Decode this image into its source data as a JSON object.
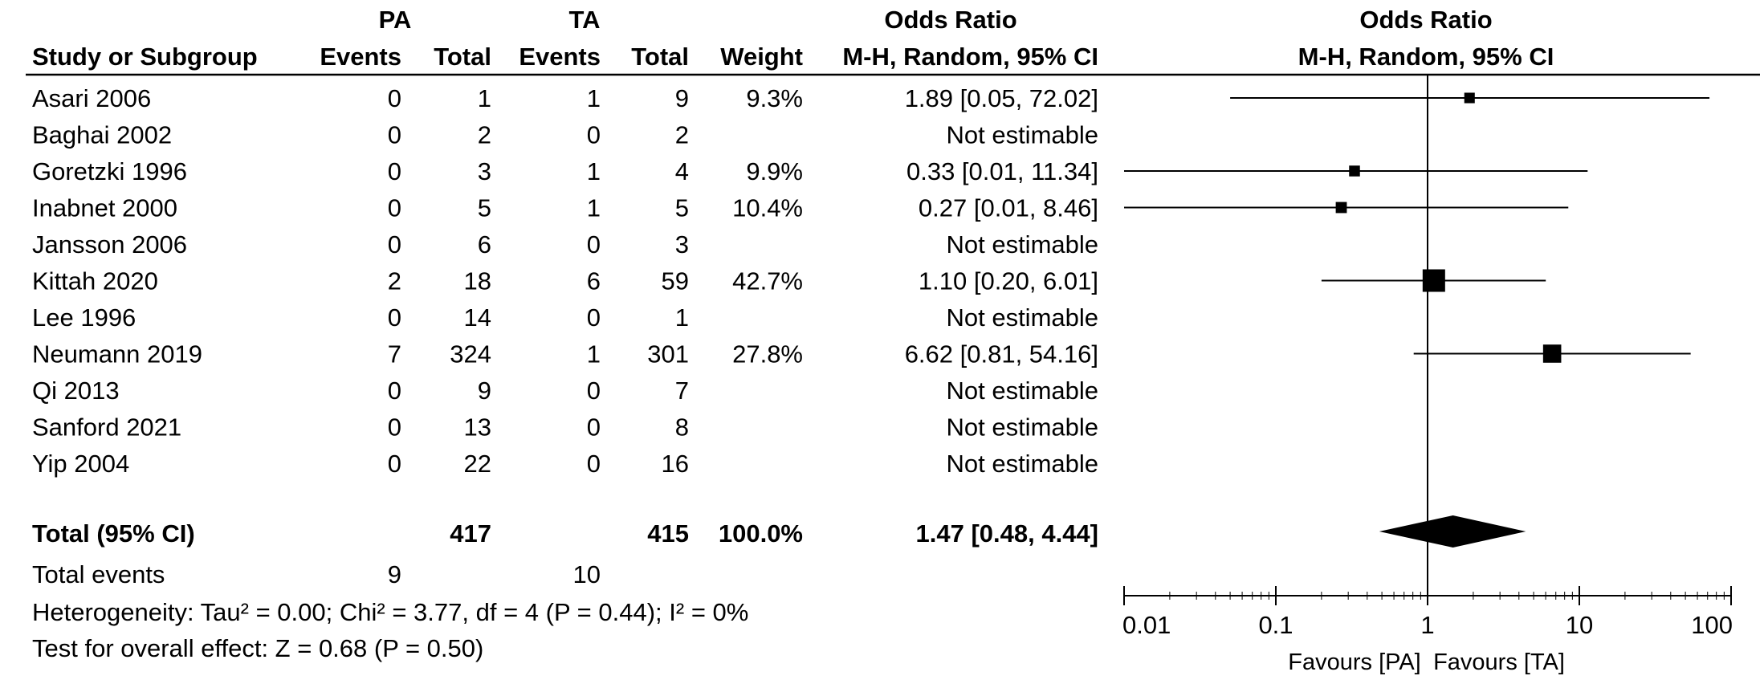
{
  "header": {
    "group1": "PA",
    "group2": "TA",
    "or_title": "Odds Ratio",
    "plot_title": "Odds Ratio",
    "study_col": "Study or Subgroup",
    "events1": "Events",
    "total1": "Total",
    "events2": "Events",
    "total2": "Total",
    "weight": "Weight",
    "or_method": "M-H, Random, 95% CI",
    "plot_method": "M-H, Random, 95% CI"
  },
  "studies": [
    {
      "name": "Asari 2006",
      "e1": "0",
      "n1": "1",
      "e2": "1",
      "n2": "9",
      "weight": "9.3%",
      "ci_text": "1.89 [0.05, 72.02]",
      "or": 1.89,
      "lo": 0.05,
      "hi": 72.02,
      "w": 9.3
    },
    {
      "name": "Baghai 2002",
      "e1": "0",
      "n1": "2",
      "e2": "0",
      "n2": "2",
      "weight": "",
      "ci_text": "Not estimable",
      "or": null,
      "lo": null,
      "hi": null,
      "w": 0
    },
    {
      "name": "Goretzki 1996",
      "e1": "0",
      "n1": "3",
      "e2": "1",
      "n2": "4",
      "weight": "9.9%",
      "ci_text": "0.33 [0.01, 11.34]",
      "or": 0.33,
      "lo": 0.01,
      "hi": 11.34,
      "w": 9.9
    },
    {
      "name": "Inabnet 2000",
      "e1": "0",
      "n1": "5",
      "e2": "1",
      "n2": "5",
      "weight": "10.4%",
      "ci_text": "0.27 [0.01, 8.46]",
      "or": 0.27,
      "lo": 0.01,
      "hi": 8.46,
      "w": 10.4
    },
    {
      "name": "Jansson 2006",
      "e1": "0",
      "n1": "6",
      "e2": "0",
      "n2": "3",
      "weight": "",
      "ci_text": "Not estimable",
      "or": null,
      "lo": null,
      "hi": null,
      "w": 0
    },
    {
      "name": "Kittah 2020",
      "e1": "2",
      "n1": "18",
      "e2": "6",
      "n2": "59",
      "weight": "42.7%",
      "ci_text": "1.10 [0.20, 6.01]",
      "or": 1.1,
      "lo": 0.2,
      "hi": 6.01,
      "w": 42.7
    },
    {
      "name": "Lee 1996",
      "e1": "0",
      "n1": "14",
      "e2": "0",
      "n2": "1",
      "weight": "",
      "ci_text": "Not estimable",
      "or": null,
      "lo": null,
      "hi": null,
      "w": 0
    },
    {
      "name": "Neumann 2019",
      "e1": "7",
      "n1": "324",
      "e2": "1",
      "n2": "301",
      "weight": "27.8%",
      "ci_text": "6.62 [0.81, 54.16]",
      "or": 6.62,
      "lo": 0.81,
      "hi": 54.16,
      "w": 27.8
    },
    {
      "name": "Qi 2013",
      "e1": "0",
      "n1": "9",
      "e2": "0",
      "n2": "7",
      "weight": "",
      "ci_text": "Not estimable",
      "or": null,
      "lo": null,
      "hi": null,
      "w": 0
    },
    {
      "name": "Sanford 2021",
      "e1": "0",
      "n1": "13",
      "e2": "0",
      "n2": "8",
      "weight": "",
      "ci_text": "Not estimable",
      "or": null,
      "lo": null,
      "hi": null,
      "w": 0
    },
    {
      "name": "Yip 2004",
      "e1": "0",
      "n1": "22",
      "e2": "0",
      "n2": "16",
      "weight": "",
      "ci_text": "Not estimable",
      "or": null,
      "lo": null,
      "hi": null,
      "w": 0
    }
  ],
  "total": {
    "label": "Total (95% CI)",
    "n1": "417",
    "n2": "415",
    "weight": "100.0%",
    "ci_text": "1.47 [0.48, 4.44]",
    "or": 1.47,
    "lo": 0.48,
    "hi": 4.44
  },
  "events": {
    "label": "Total events",
    "e1": "9",
    "e2": "10"
  },
  "heterogeneity": "Heterogeneity: Tau² = 0.00; Chi² = 3.77, df = 4 (P = 0.44); I² = 0%",
  "overall_effect": "Test for overall effect: Z = 0.68 (P = 0.50)",
  "axis": {
    "scale": "log",
    "range": [
      0.01,
      100
    ],
    "ticks": [
      0.01,
      0.1,
      1,
      10,
      100
    ],
    "tick_labels": [
      "0.01",
      "0.1",
      "1",
      "10",
      "100"
    ],
    "favours_left": "Favours [PA]",
    "favours_right": "Favours [TA]"
  },
  "chart_data": {
    "type": "scatter",
    "title": "Odds Ratio",
    "subtitle": "M-H, Random, 95% CI",
    "xscale": "log",
    "xlim": [
      0.01,
      100
    ],
    "xlabel_left": "Favours [PA]",
    "xlabel_right": "Favours [TA]",
    "series": [
      {
        "name": "Asari 2006",
        "or": 1.89,
        "ci": [
          0.05,
          72.02
        ],
        "weight": 9.3
      },
      {
        "name": "Goretzki 1996",
        "or": 0.33,
        "ci": [
          0.01,
          11.34
        ],
        "weight": 9.9
      },
      {
        "name": "Inabnet 2000",
        "or": 0.27,
        "ci": [
          0.01,
          8.46
        ],
        "weight": 10.4
      },
      {
        "name": "Kittah 2020",
        "or": 1.1,
        "ci": [
          0.2,
          6.01
        ],
        "weight": 42.7
      },
      {
        "name": "Neumann 2019",
        "or": 6.62,
        "ci": [
          0.81,
          54.16
        ],
        "weight": 27.8
      }
    ],
    "pooled": {
      "name": "Total (95% CI)",
      "or": 1.47,
      "ci": [
        0.48,
        4.44
      ],
      "weight": 100.0
    }
  }
}
